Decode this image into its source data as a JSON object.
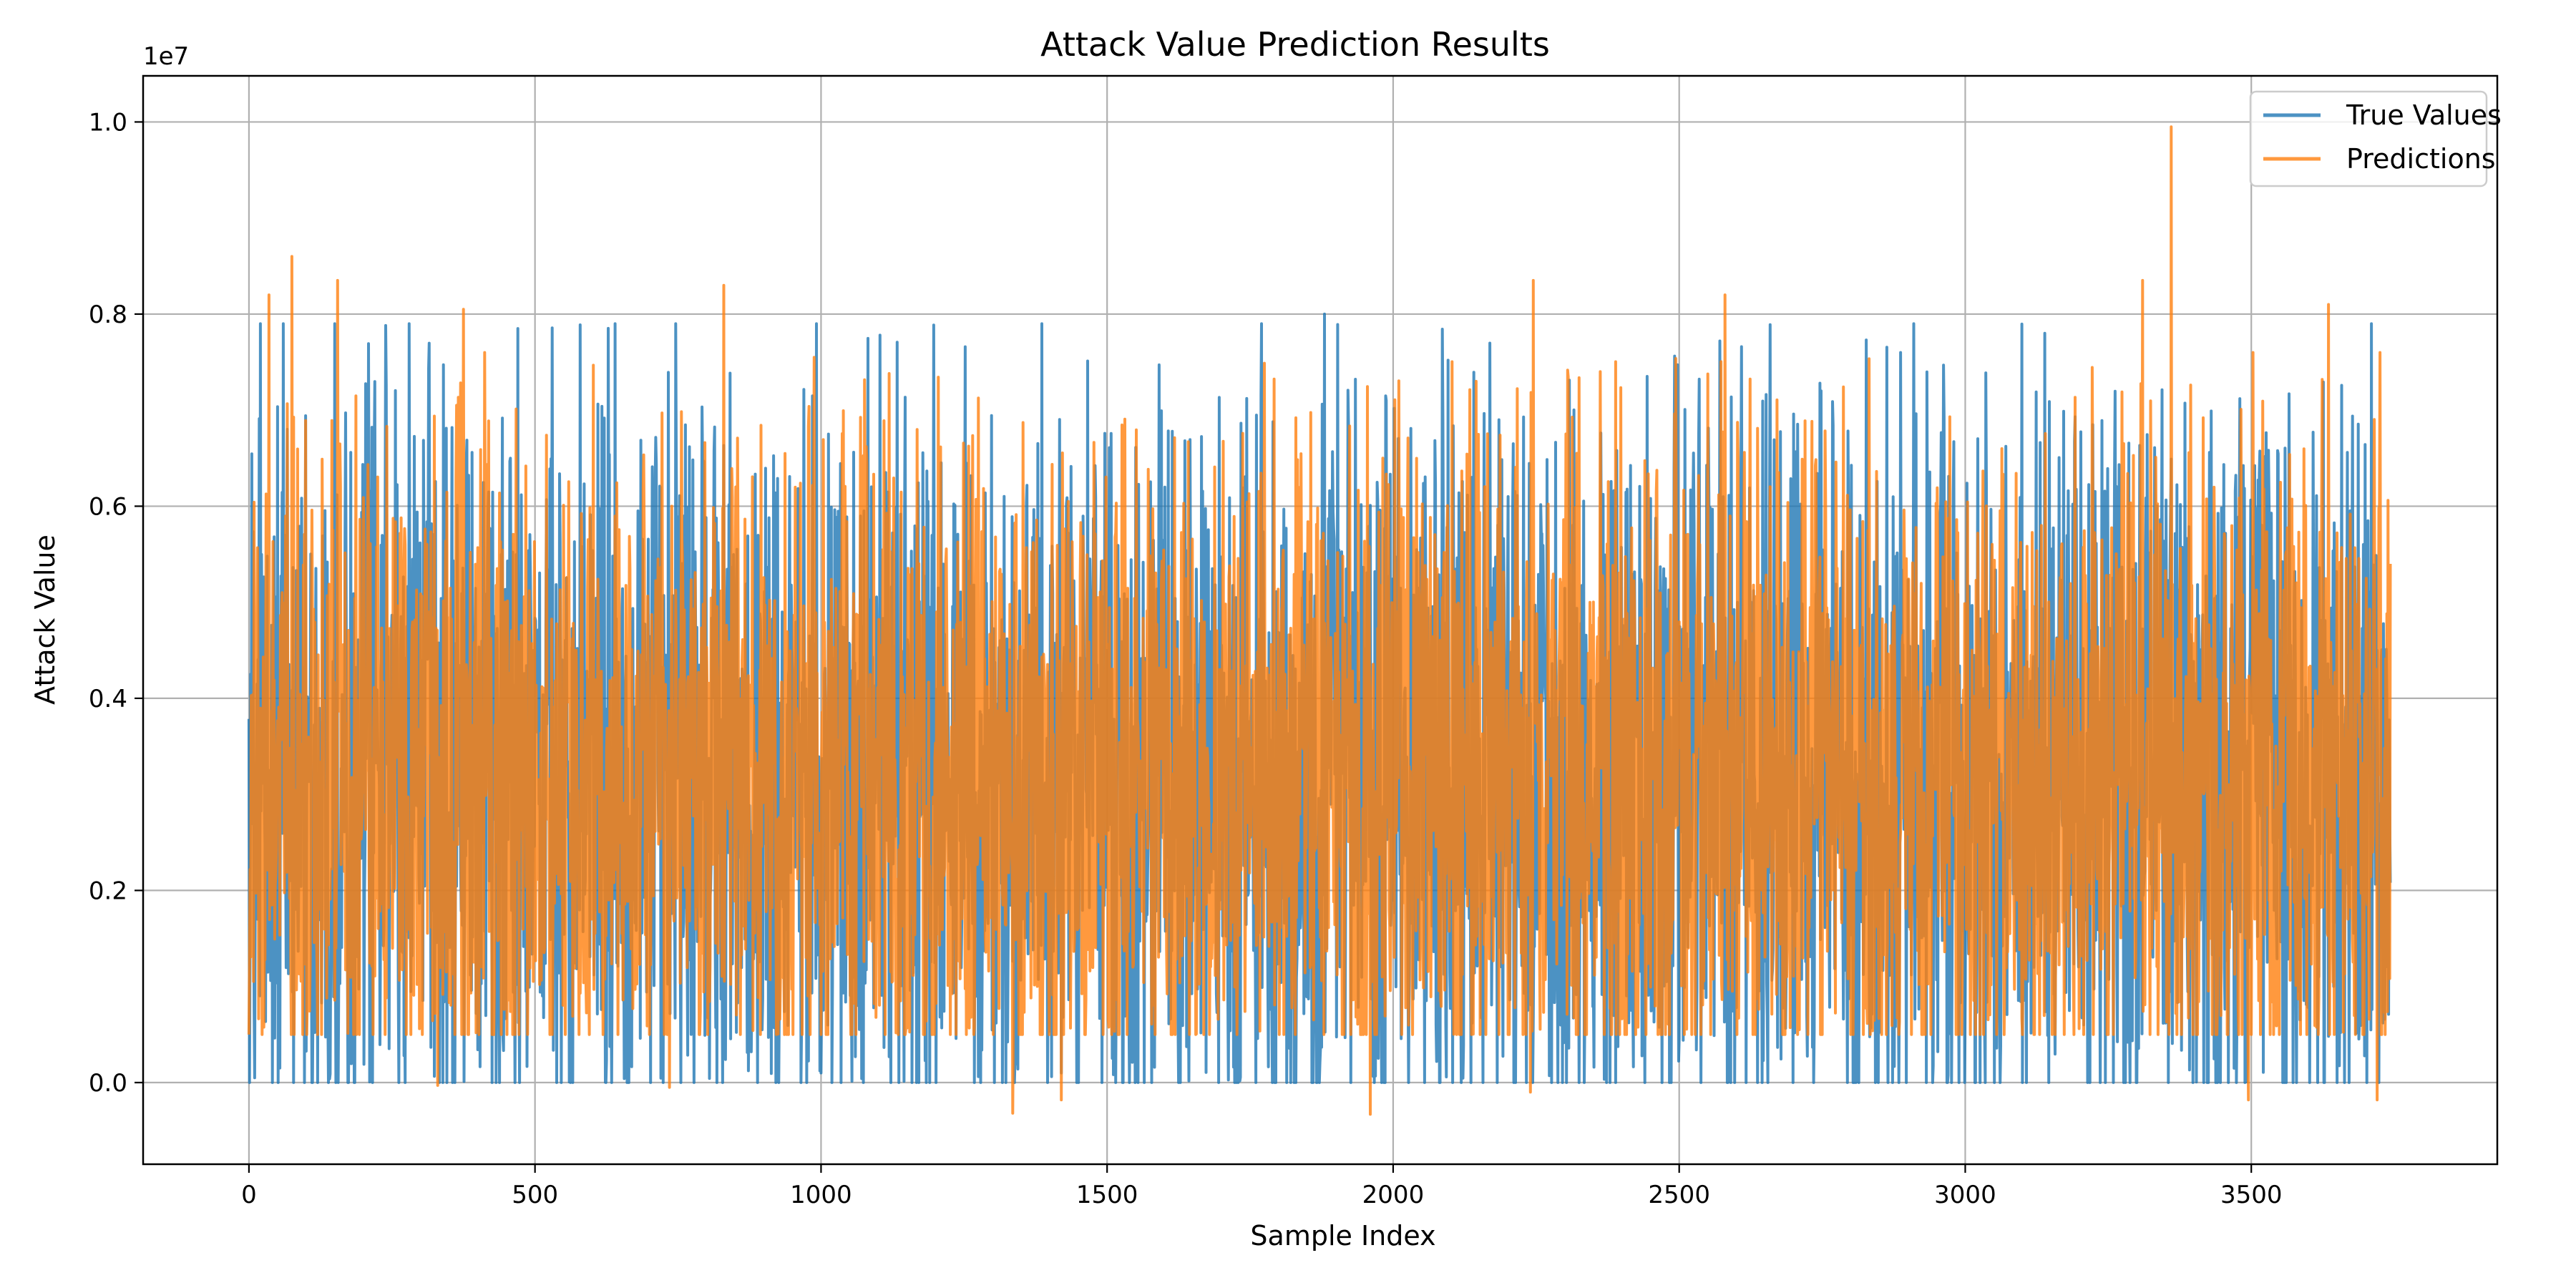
{
  "chart_data": {
    "type": "line",
    "title": "Attack Value Prediction Results",
    "xlabel": "Sample Index",
    "ylabel": "Attack Value",
    "y_offset_text": "1e7",
    "xlim": [
      -185,
      3930
    ],
    "ylim": [
      -0.085,
      1.048
    ],
    "y_scale_factor": 10000000,
    "x_ticks": [
      0,
      500,
      1000,
      1500,
      2000,
      2500,
      3000,
      3500
    ],
    "x_tick_labels": [
      "0",
      "500",
      "1000",
      "1500",
      "2000",
      "2500",
      "3000",
      "3500"
    ],
    "y_ticks": [
      0.0,
      0.2,
      0.4,
      0.6,
      0.8,
      1.0
    ],
    "y_tick_labels": [
      "0.0",
      "0.2",
      "0.4",
      "0.6",
      "0.8",
      "1.0"
    ],
    "grid": true,
    "legend_position": "top-right",
    "sample_count": 3744,
    "series": [
      {
        "name": "True Values",
        "color": "#1f77b4",
        "opacity": 0.8,
        "typical_range": [
          0.0,
          0.79
        ],
        "peaks": [
          {
            "x": 20,
            "y": 0.79
          },
          {
            "x": 150,
            "y": 0.79
          },
          {
            "x": 240,
            "y": 0.725
          },
          {
            "x": 280,
            "y": 0.79
          },
          {
            "x": 470,
            "y": 0.785
          },
          {
            "x": 640,
            "y": 0.79
          },
          {
            "x": 1420,
            "y": 0.795
          },
          {
            "x": 1880,
            "y": 0.8
          },
          {
            "x": 2910,
            "y": 0.79
          },
          {
            "x": 3710,
            "y": 0.79
          }
        ],
        "troughs": [
          {
            "x": 10,
            "y": 0.005
          },
          {
            "x": 185,
            "y": 0.0
          },
          {
            "x": 465,
            "y": 0.0
          },
          {
            "x": 1000,
            "y": 0.01
          },
          {
            "x": 1420,
            "y": 0.01
          },
          {
            "x": 2590,
            "y": 0.0
          },
          {
            "x": 3300,
            "y": 0.0
          },
          {
            "x": 3650,
            "y": 0.0
          }
        ]
      },
      {
        "name": "Predictions",
        "color": "#ff7f0e",
        "opacity": 0.8,
        "typical_range": [
          0.05,
          0.76
        ],
        "peaks": [
          {
            "x": 35,
            "y": 0.82
          },
          {
            "x": 75,
            "y": 0.86
          },
          {
            "x": 155,
            "y": 0.835
          },
          {
            "x": 375,
            "y": 0.805
          },
          {
            "x": 830,
            "y": 0.83
          },
          {
            "x": 2245,
            "y": 0.835
          },
          {
            "x": 2580,
            "y": 0.82
          },
          {
            "x": 3310,
            "y": 0.835
          },
          {
            "x": 3360,
            "y": 0.995
          },
          {
            "x": 3635,
            "y": 0.81
          }
        ],
        "troughs": [
          {
            "x": 330,
            "y": -0.003
          },
          {
            "x": 735,
            "y": -0.005
          },
          {
            "x": 1335,
            "y": -0.032
          },
          {
            "x": 1420,
            "y": -0.018
          },
          {
            "x": 1960,
            "y": -0.033
          },
          {
            "x": 2240,
            "y": -0.01
          },
          {
            "x": 3495,
            "y": -0.018
          },
          {
            "x": 3720,
            "y": -0.018
          }
        ]
      }
    ]
  }
}
